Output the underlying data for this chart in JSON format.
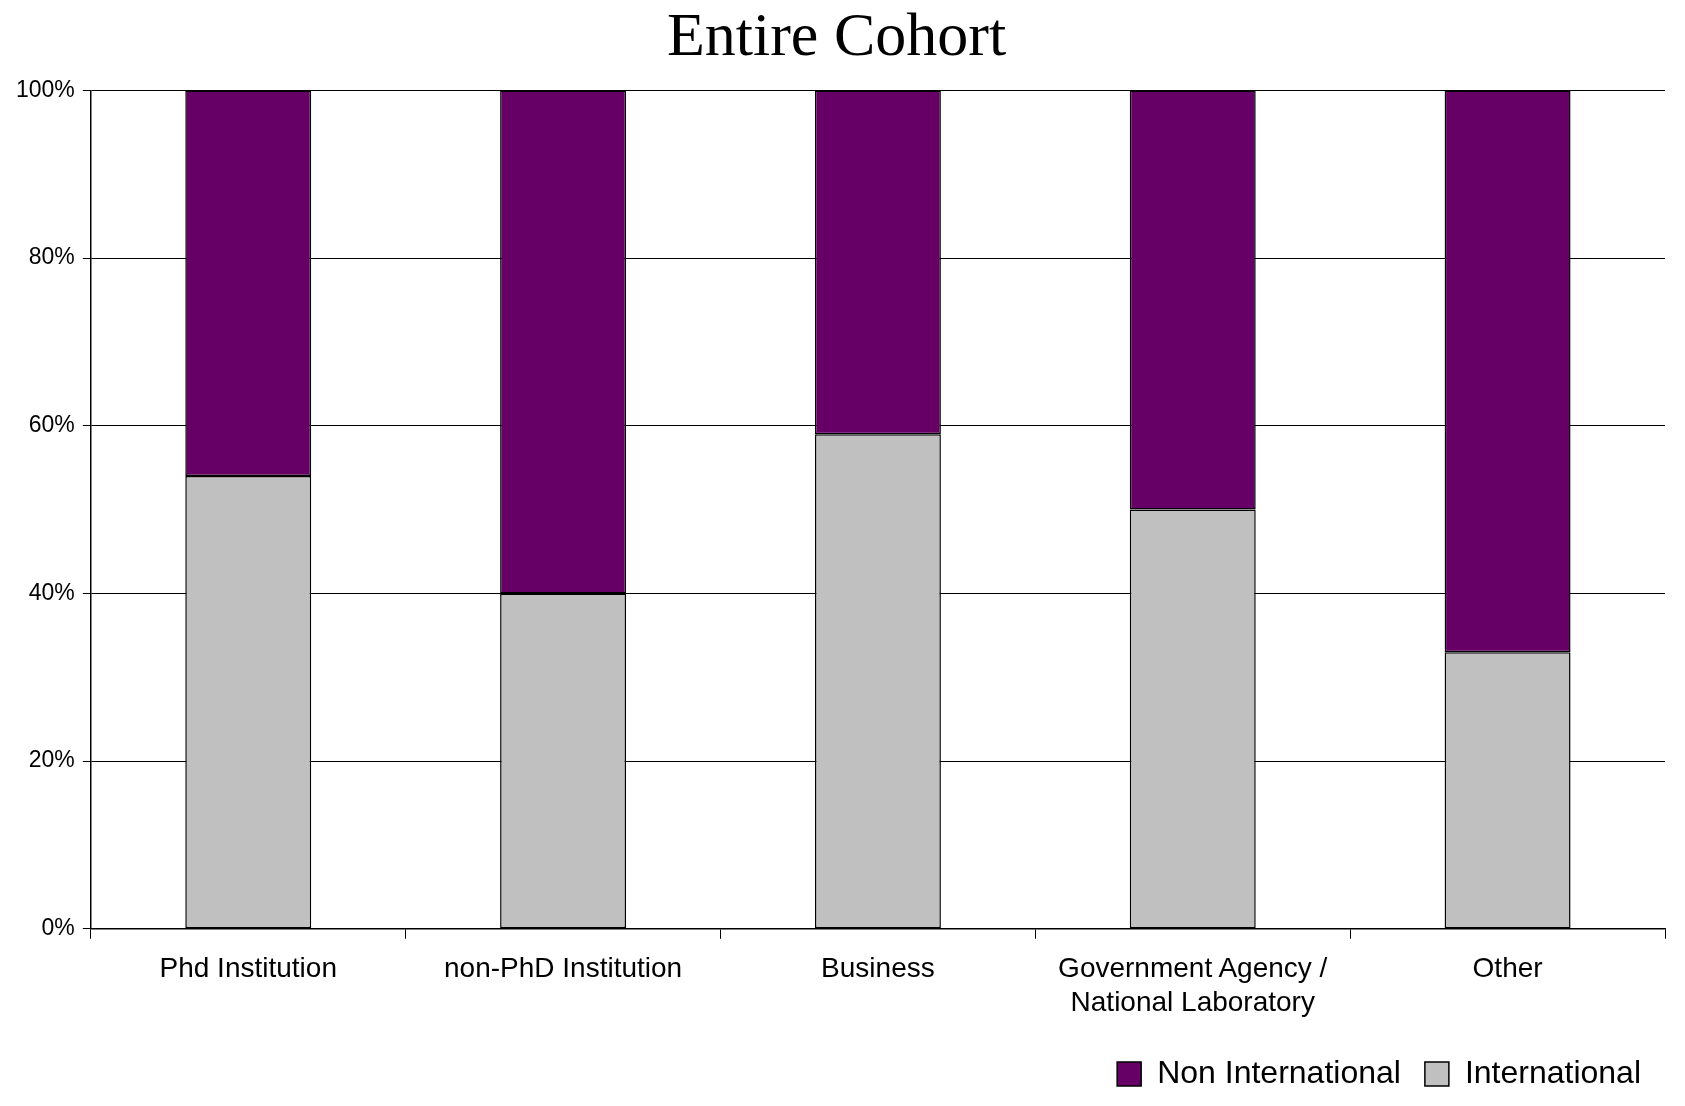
{
  "chart_data": {
    "type": "bar",
    "title": "Entire Cohort",
    "stacked": true,
    "categories": [
      "Phd Institution",
      "non-PhD Institution",
      "Business",
      "Government Agency / National Laboratory",
      "Other"
    ],
    "series": [
      {
        "name": "International",
        "color": "#c0c0c0",
        "values": [
          54,
          40,
          59,
          50,
          33
        ]
      },
      {
        "name": "Non International",
        "color": "#660066",
        "values": [
          46,
          60,
          41,
          50,
          67
        ]
      }
    ],
    "ylim": [
      0,
      100
    ],
    "yticks": [
      {
        "value": 0,
        "label": "0%"
      },
      {
        "value": 20,
        "label": "20%"
      },
      {
        "value": 40,
        "label": "40%"
      },
      {
        "value": 60,
        "label": "60%"
      },
      {
        "value": 80,
        "label": "80%"
      },
      {
        "value": 100,
        "label": "100%"
      }
    ],
    "grid": "y",
    "legend": "bottom right"
  }
}
